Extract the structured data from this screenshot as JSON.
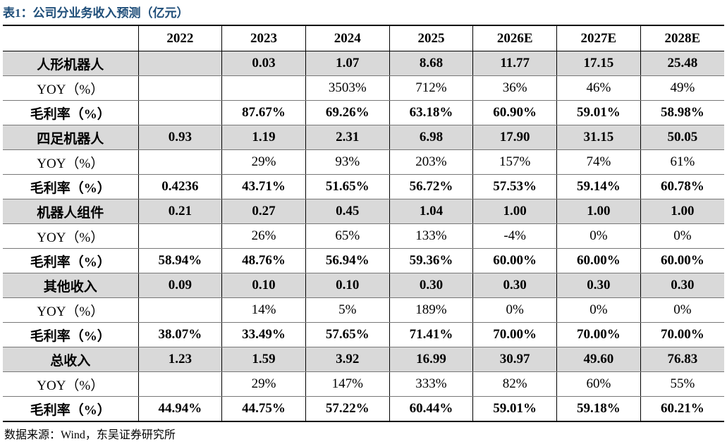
{
  "title": "表1：公司分业务收入预测（亿元）",
  "table": {
    "header": [
      "2022",
      "2023",
      "2024",
      "2025",
      "2026E",
      "2027E",
      "2028E"
    ],
    "rows": [
      [
        "人形机器人",
        null,
        "0.03",
        "1.07",
        "8.68",
        "11.77",
        "17.15",
        "25.48"
      ],
      [
        "YOY（%）",
        null,
        null,
        "3503%",
        "712%",
        "36%",
        "46%",
        "49%"
      ],
      [
        "毛利率（%）",
        null,
        "87.67%",
        "69.26%",
        "63.18%",
        "60.90%",
        "59.01%",
        "58.98%"
      ],
      [
        "四足机器人",
        "0.93",
        "1.19",
        "2.31",
        "6.98",
        "17.90",
        "31.15",
        "50.05"
      ],
      [
        "YOY（%）",
        null,
        "29%",
        "93%",
        "203%",
        "157%",
        "74%",
        "61%"
      ],
      [
        "毛利率（%）",
        "0.4236",
        "43.71%",
        "51.65%",
        "56.72%",
        "57.53%",
        "59.14%",
        "60.78%"
      ],
      [
        "机器人组件",
        "0.21",
        "0.27",
        "0.45",
        "1.04",
        "1.00",
        "1.00",
        "1.00"
      ],
      [
        "YOY（%）",
        null,
        "26%",
        "65%",
        "133%",
        "-4%",
        "0%",
        "0%"
      ],
      [
        "毛利率（%）",
        "58.94%",
        "48.76%",
        "56.94%",
        "59.36%",
        "60.00%",
        "60.00%",
        "60.00%"
      ],
      [
        "其他收入",
        "0.09",
        "0.10",
        "0.10",
        "0.30",
        "0.30",
        "0.30",
        "0.30"
      ],
      [
        "YOY（%）",
        null,
        "14%",
        "5%",
        "189%",
        "0%",
        "0%",
        "0%"
      ],
      [
        "毛利率（%）",
        "38.07%",
        "33.49%",
        "57.65%",
        "71.41%",
        "70.00%",
        "70.00%",
        "70.00%"
      ],
      [
        "总收入",
        "1.23",
        "1.59",
        "3.92",
        "16.99",
        "30.97",
        "49.60",
        "76.83"
      ],
      [
        "YOY（%）",
        null,
        "29%",
        "147%",
        "333%",
        "82%",
        "60%",
        "55%"
      ],
      [
        "毛利率（%）",
        "44.94%",
        "44.75%",
        "57.22%",
        "60.44%",
        "59.01%",
        "59.18%",
        "60.21%"
      ]
    ]
  },
  "source": "数据来源：Wind，东吴证券研究所"
}
